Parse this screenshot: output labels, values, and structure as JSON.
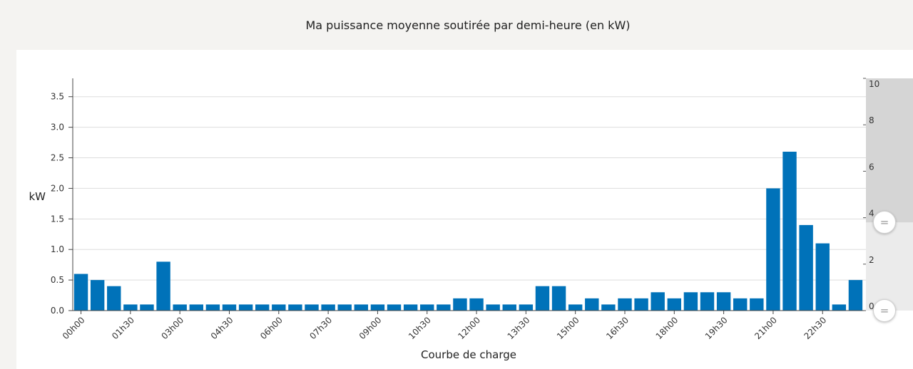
{
  "page": {
    "title": "Ma puissance moyenne soutirée par demi-heure (en kW)"
  },
  "colors": {
    "bar": "#0072b9",
    "background": "#f4f3f1",
    "panel": "#ffffff",
    "slider": "#d5d5d5"
  },
  "chart_data": {
    "type": "bar",
    "title": "Ma puissance moyenne soutirée par demi-heure (en kW)",
    "xlabel": "Courbe de charge",
    "ylabel": "kW",
    "ylim": [
      0,
      3.8
    ],
    "yticks": [
      "0.0",
      "0.5",
      "1.0",
      "1.5",
      "2.0",
      "2.5",
      "3.0",
      "3.5"
    ],
    "xtick_labels": [
      "00h00",
      "01h30",
      "03h00",
      "04h30",
      "06h00",
      "07h30",
      "09h00",
      "10h30",
      "12h00",
      "13h30",
      "15h00",
      "16h30",
      "18h00",
      "19h30",
      "21h00",
      "22h30"
    ],
    "categories": [
      "00h00",
      "00h30",
      "01h00",
      "01h30",
      "02h00",
      "02h30",
      "03h00",
      "03h30",
      "04h00",
      "04h30",
      "05h00",
      "05h30",
      "06h00",
      "06h30",
      "07h00",
      "07h30",
      "08h00",
      "08h30",
      "09h00",
      "09h30",
      "10h00",
      "10h30",
      "11h00",
      "11h30",
      "12h00",
      "12h30",
      "13h00",
      "13h30",
      "14h00",
      "14h30",
      "15h00",
      "15h30",
      "16h00",
      "16h30",
      "17h00",
      "17h30",
      "18h00",
      "18h30",
      "19h00",
      "19h30",
      "20h00",
      "20h30",
      "21h00",
      "21h30",
      "22h00",
      "22h30",
      "23h00",
      "23h30"
    ],
    "values": [
      0.6,
      0.5,
      0.4,
      0.1,
      0.1,
      0.8,
      0.1,
      0.1,
      0.1,
      0.1,
      0.1,
      0.1,
      0.1,
      0.1,
      0.1,
      0.1,
      0.1,
      0.1,
      0.1,
      0.1,
      0.1,
      0.1,
      0.1,
      0.2,
      0.2,
      0.1,
      0.1,
      0.1,
      0.4,
      0.4,
      0.1,
      0.2,
      0.1,
      0.2,
      0.2,
      0.3,
      0.2,
      0.3,
      0.3,
      0.3,
      0.2,
      0.2,
      2.0,
      2.6,
      1.4,
      1.1,
      0.1,
      0.5
    ],
    "grid": true,
    "secondary_axis": {
      "labels": [
        "0",
        "2",
        "4",
        "6",
        "8",
        "10"
      ],
      "range": [
        0,
        10
      ],
      "selection": [
        0,
        3.8
      ]
    }
  }
}
